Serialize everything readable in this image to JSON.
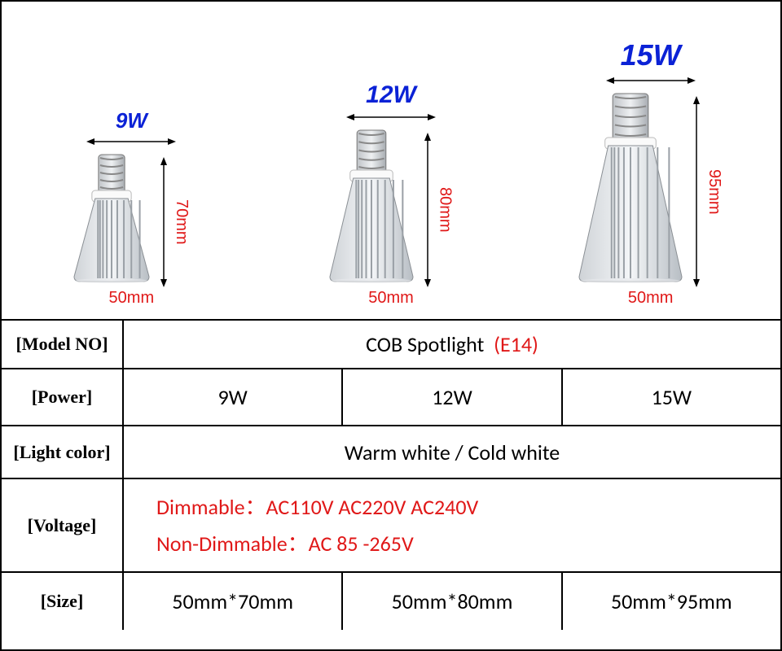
{
  "bulbs": [
    {
      "watt": "9W",
      "watt_fontsize": 26,
      "height_label": "70mm",
      "width_label": "50mm",
      "body_h": 110,
      "body_w": 96,
      "screw_h": 50,
      "arrow_len": 160
    },
    {
      "watt": "12W",
      "watt_fontsize": 30,
      "height_label": "80mm",
      "width_label": "50mm",
      "body_h": 135,
      "body_w": 106,
      "screw_h": 55,
      "arrow_len": 190
    },
    {
      "watt": "15W",
      "watt_fontsize": 36,
      "height_label": "95mm",
      "width_label": "50mm",
      "body_h": 175,
      "body_w": 130,
      "screw_h": 60,
      "arrow_len": 235
    }
  ],
  "h_arrow_w": 110,
  "labels": {
    "model": "[Model NO]",
    "power": "[Power]",
    "light": "[Light color]",
    "voltage": "[Voltage]",
    "size": "[Size]"
  },
  "model_value_main": "COB Spotlight",
  "model_value_accent": "(E14)",
  "power_values": [
    "9W",
    "12W",
    "15W"
  ],
  "light_value": "Warm white / Cold white",
  "voltage_line1": "Dimmable：AC110V AC220V AC240V",
  "voltage_line2": "Non-Dimmable：AC 85 -265V",
  "size_values": [
    "50mm*70mm",
    "50mm*80mm",
    "50mm*95mm"
  ],
  "colors": {
    "accent_red": "#e01818",
    "watt_blue": "#0b22d6",
    "border": "#000000"
  },
  "row_heights": {
    "model": 60,
    "power": 70,
    "light": 65,
    "voltage": 115,
    "size": 72
  }
}
